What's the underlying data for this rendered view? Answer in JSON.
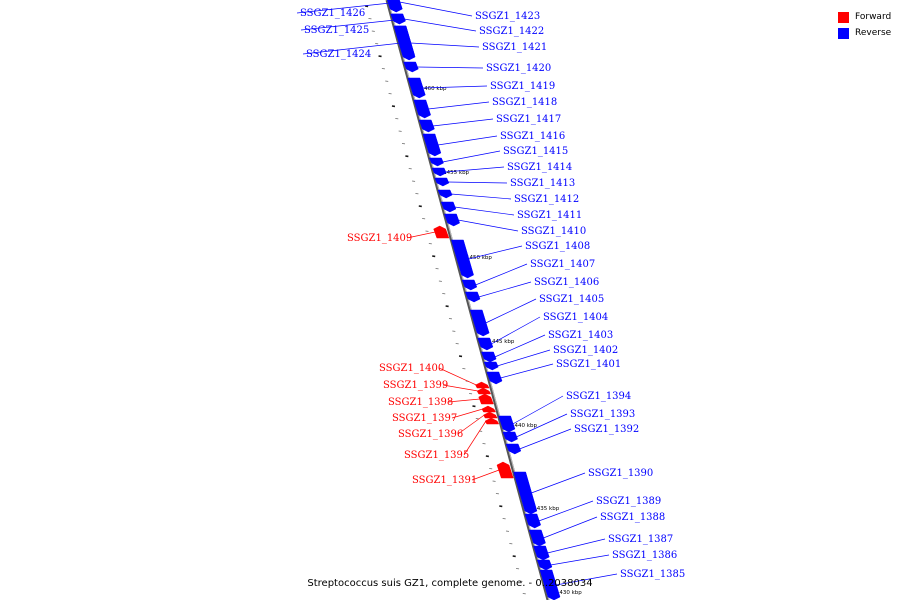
{
  "legend": {
    "forward_label": "Forward",
    "reverse_label": "Reverse",
    "forward_color": "#ff0000",
    "reverse_color": "#0000ff"
  },
  "caption": "Streptococcus suis GZ1, complete genome. - 0..2038034",
  "ticks": [
    {
      "label": "1460 kbp"
    },
    {
      "label": "1455 kbp"
    },
    {
      "label": "1450 kbp"
    },
    {
      "label": "1445 kbp"
    },
    {
      "label": "1440 kbp"
    },
    {
      "label": "1435 kbp"
    },
    {
      "label": "1430 kbp"
    }
  ],
  "genes": [
    {
      "name": "SSGZ1_1426",
      "strand": "reverse"
    },
    {
      "name": "SSGZ1_1425",
      "strand": "reverse"
    },
    {
      "name": "SSGZ1_1424",
      "strand": "reverse"
    },
    {
      "name": "SSGZ1_1423",
      "strand": "reverse"
    },
    {
      "name": "SSGZ1_1422",
      "strand": "reverse"
    },
    {
      "name": "SSGZ1_1421",
      "strand": "reverse"
    },
    {
      "name": "SSGZ1_1420",
      "strand": "reverse"
    },
    {
      "name": "SSGZ1_1419",
      "strand": "reverse"
    },
    {
      "name": "SSGZ1_1418",
      "strand": "reverse"
    },
    {
      "name": "SSGZ1_1417",
      "strand": "reverse"
    },
    {
      "name": "SSGZ1_1416",
      "strand": "reverse"
    },
    {
      "name": "SSGZ1_1415",
      "strand": "reverse"
    },
    {
      "name": "SSGZ1_1414",
      "strand": "reverse"
    },
    {
      "name": "SSGZ1_1413",
      "strand": "reverse"
    },
    {
      "name": "SSGZ1_1412",
      "strand": "reverse"
    },
    {
      "name": "SSGZ1_1411",
      "strand": "reverse"
    },
    {
      "name": "SSGZ1_1410",
      "strand": "reverse"
    },
    {
      "name": "SSGZ1_1409",
      "strand": "forward"
    },
    {
      "name": "SSGZ1_1408",
      "strand": "reverse"
    },
    {
      "name": "SSGZ1_1407",
      "strand": "reverse"
    },
    {
      "name": "SSGZ1_1406",
      "strand": "reverse"
    },
    {
      "name": "SSGZ1_1405",
      "strand": "reverse"
    },
    {
      "name": "SSGZ1_1404",
      "strand": "reverse"
    },
    {
      "name": "SSGZ1_1403",
      "strand": "reverse"
    },
    {
      "name": "SSGZ1_1402",
      "strand": "reverse"
    },
    {
      "name": "SSGZ1_1401",
      "strand": "reverse"
    },
    {
      "name": "SSGZ1_1400",
      "strand": "forward"
    },
    {
      "name": "SSGZ1_1399",
      "strand": "forward"
    },
    {
      "name": "SSGZ1_1398",
      "strand": "forward"
    },
    {
      "name": "SSGZ1_1397",
      "strand": "forward"
    },
    {
      "name": "SSGZ1_1396",
      "strand": "forward"
    },
    {
      "name": "SSGZ1_1395",
      "strand": "forward"
    },
    {
      "name": "SSGZ1_1394",
      "strand": "reverse"
    },
    {
      "name": "SSGZ1_1393",
      "strand": "reverse"
    },
    {
      "name": "SSGZ1_1392",
      "strand": "reverse"
    },
    {
      "name": "SSGZ1_1391",
      "strand": "forward"
    },
    {
      "name": "SSGZ1_1390",
      "strand": "reverse"
    },
    {
      "name": "SSGZ1_1389",
      "strand": "reverse"
    },
    {
      "name": "SSGZ1_1388",
      "strand": "reverse"
    },
    {
      "name": "SSGZ1_1387",
      "strand": "reverse"
    },
    {
      "name": "SSGZ1_1386",
      "strand": "reverse"
    },
    {
      "name": "SSGZ1_1385",
      "strand": "reverse"
    }
  ]
}
